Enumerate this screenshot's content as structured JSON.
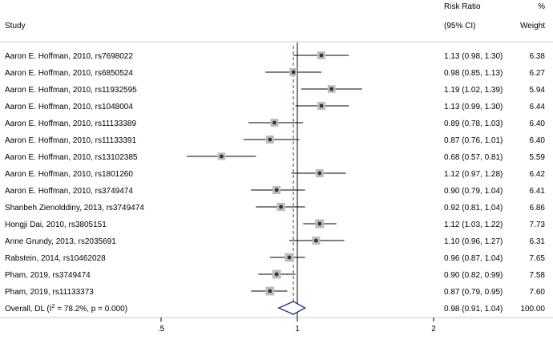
{
  "chart_data": {
    "type": "forest",
    "header": {
      "study": "Study",
      "rr_line1": "Risk Ratio",
      "rr_line2": "(95% CI)",
      "w_line1": "%",
      "w_line2": "Weight"
    },
    "x_scale": "log",
    "xlim": [
      0.5,
      2
    ],
    "ticks": [
      {
        "value": 0.5,
        "label": ".5"
      },
      {
        "value": 1,
        "label": "1"
      },
      {
        "value": 2,
        "label": "2"
      }
    ],
    "reference_line": 1,
    "pooled_line": 0.98,
    "studies": [
      {
        "label": "Aaron E. Hoffman, 2010, rs7698022",
        "rr": 1.13,
        "lo": 0.98,
        "hi": 1.3,
        "ci_text": "1.13 (0.98, 1.30)",
        "weight": "6.38"
      },
      {
        "label": "Aaron E. Hoffman, 2010, rs6850524",
        "rr": 0.98,
        "lo": 0.85,
        "hi": 1.13,
        "ci_text": "0.98 (0.85, 1.13)",
        "weight": "6.27"
      },
      {
        "label": "Aaron E. Hoffman, 2010, rs11932595",
        "rr": 1.19,
        "lo": 1.02,
        "hi": 1.39,
        "ci_text": "1.19 (1.02, 1.39)",
        "weight": "5.94"
      },
      {
        "label": "Aaron E. Hoffman, 2010, rs1048004",
        "rr": 1.13,
        "lo": 0.99,
        "hi": 1.3,
        "ci_text": "1.13 (0.99, 1.30)",
        "weight": "6.44"
      },
      {
        "label": "Aaron E. Hoffman, 2010, rs11133389",
        "rr": 0.89,
        "lo": 0.78,
        "hi": 1.03,
        "ci_text": "0.89 (0.78, 1.03)",
        "weight": "6.40"
      },
      {
        "label": "Aaron E. Hoffman, 2010, rs11133391",
        "rr": 0.87,
        "lo": 0.76,
        "hi": 1.01,
        "ci_text": "0.87 (0.76, 1.01)",
        "weight": "6.40"
      },
      {
        "label": "Aaron E. Hoffman, 2010, rs13102385",
        "rr": 0.68,
        "lo": 0.57,
        "hi": 0.81,
        "ci_text": "0.68 (0.57, 0.81)",
        "weight": "5.59"
      },
      {
        "label": "Aaron E. Hoffman, 2010, rs1801260",
        "rr": 1.12,
        "lo": 0.97,
        "hi": 1.28,
        "ci_text": "1.12 (0.97, 1.28)",
        "weight": "6.42"
      },
      {
        "label": "Aaron E. Hoffman, 2010, rs3749474",
        "rr": 0.9,
        "lo": 0.79,
        "hi": 1.04,
        "ci_text": "0.90 (0.79, 1.04)",
        "weight": "6.41"
      },
      {
        "label": "Shanbeh Zienolddiny, 2013, rs3749474",
        "rr": 0.92,
        "lo": 0.81,
        "hi": 1.04,
        "ci_text": "0.92 (0.81, 1.04)",
        "weight": "6.86"
      },
      {
        "label": "Hongji Dai, 2010, rs3805151",
        "rr": 1.12,
        "lo": 1.03,
        "hi": 1.22,
        "ci_text": "1.12 (1.03, 1.22)",
        "weight": "7.73"
      },
      {
        "label": "Anne Grundy, 2013, rs2035691",
        "rr": 1.1,
        "lo": 0.96,
        "hi": 1.27,
        "ci_text": "1.10 (0.96, 1.27)",
        "weight": "6.31"
      },
      {
        "label": "Rabstein, 2014, rs10462028",
        "rr": 0.96,
        "lo": 0.87,
        "hi": 1.04,
        "ci_text": "0.96 (0.87, 1.04)",
        "weight": "7.65"
      },
      {
        "label": "Pham, 2019, rs3749474",
        "rr": 0.9,
        "lo": 0.82,
        "hi": 0.99,
        "ci_text": "0.90 (0.82, 0.99)",
        "weight": "7.58"
      },
      {
        "label": "Pham, 2019, rs11133373",
        "rr": 0.87,
        "lo": 0.79,
        "hi": 0.95,
        "ci_text": "0.87 (0.79, 0.95)",
        "weight": "7.60"
      }
    ],
    "overall": {
      "label_prefix": "Overall, DL (I",
      "label_sup": "2",
      "label_suffix": " = 78.2%, p = 0.000)",
      "rr": 0.98,
      "lo": 0.91,
      "hi": 1.04,
      "ci_text": "0.98 (0.91, 1.04)",
      "weight": "100.00"
    }
  }
}
